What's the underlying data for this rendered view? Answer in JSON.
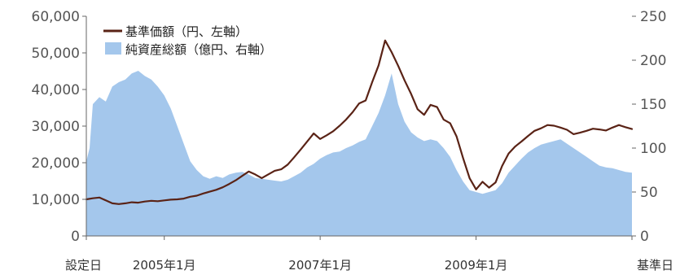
{
  "chart_data": {
    "type": "area",
    "title": "",
    "legend": {
      "placement": "top-left",
      "entries": [
        {
          "label": "基準価額（円、左軸）",
          "kind": "line",
          "color": "#5a2316"
        },
        {
          "label": "純資産総額（億円、右軸）",
          "kind": "area",
          "color": "#a4c7ec"
        }
      ]
    },
    "y_left": {
      "ticks": [
        "60,000",
        "50,000",
        "40,000",
        "30,000",
        "20,000",
        "10,000",
        "0"
      ],
      "range": [
        0,
        60000
      ]
    },
    "y_right": {
      "ticks": [
        "250",
        "200",
        "150",
        "100",
        "50",
        "0"
      ],
      "range": [
        0,
        250
      ]
    },
    "x_ticks": [
      {
        "label": "設定日",
        "x": 0
      },
      {
        "label": "2005年1月",
        "x": 12
      },
      {
        "label": "2007年1月",
        "x": 36
      },
      {
        "label": "2009年1月",
        "x": 60
      },
      {
        "label": "基準日",
        "x": 84
      }
    ],
    "x_range": [
      0,
      84
    ],
    "x_unit": "months since inception",
    "series": [
      {
        "name": "純資産総額（億円、右軸）",
        "type": "area",
        "axis": "right",
        "color": "#a4c7ec",
        "points": [
          [
            0,
            85
          ],
          [
            0.5,
            100
          ],
          [
            1,
            150
          ],
          [
            2,
            158
          ],
          [
            3,
            153
          ],
          [
            4,
            170
          ],
          [
            5,
            175
          ],
          [
            6,
            178
          ],
          [
            7,
            185
          ],
          [
            8,
            188
          ],
          [
            9,
            182
          ],
          [
            10,
            178
          ],
          [
            11,
            170
          ],
          [
            12,
            160
          ],
          [
            13,
            145
          ],
          [
            14,
            125
          ],
          [
            15,
            105
          ],
          [
            16,
            85
          ],
          [
            17,
            75
          ],
          [
            18,
            68
          ],
          [
            19,
            65
          ],
          [
            20,
            68
          ],
          [
            21,
            66
          ],
          [
            22,
            70
          ],
          [
            23,
            72
          ],
          [
            24,
            73
          ],
          [
            25,
            70
          ],
          [
            26,
            66
          ],
          [
            27,
            65
          ],
          [
            28,
            64
          ],
          [
            29,
            63
          ],
          [
            30,
            62
          ],
          [
            31,
            64
          ],
          [
            32,
            68
          ],
          [
            33,
            72
          ],
          [
            34,
            78
          ],
          [
            35,
            82
          ],
          [
            36,
            88
          ],
          [
            37,
            92
          ],
          [
            38,
            95
          ],
          [
            39,
            96
          ],
          [
            40,
            100
          ],
          [
            41,
            103
          ],
          [
            42,
            107
          ],
          [
            43,
            110
          ],
          [
            44,
            125
          ],
          [
            45,
            140
          ],
          [
            46,
            160
          ],
          [
            47,
            185
          ],
          [
            48,
            150
          ],
          [
            49,
            130
          ],
          [
            50,
            118
          ],
          [
            51,
            112
          ],
          [
            52,
            108
          ],
          [
            53,
            110
          ],
          [
            54,
            108
          ],
          [
            55,
            100
          ],
          [
            56,
            90
          ],
          [
            57,
            75
          ],
          [
            58,
            62
          ],
          [
            59,
            52
          ],
          [
            60,
            50
          ],
          [
            61,
            48
          ],
          [
            62,
            50
          ],
          [
            63,
            52
          ],
          [
            64,
            60
          ],
          [
            65,
            72
          ],
          [
            66,
            80
          ],
          [
            67,
            88
          ],
          [
            68,
            95
          ],
          [
            69,
            100
          ],
          [
            70,
            104
          ],
          [
            71,
            106
          ],
          [
            72,
            108
          ],
          [
            73,
            110
          ],
          [
            74,
            105
          ],
          [
            75,
            100
          ],
          [
            76,
            95
          ],
          [
            77,
            90
          ],
          [
            78,
            85
          ],
          [
            79,
            80
          ],
          [
            80,
            78
          ],
          [
            81,
            77
          ],
          [
            82,
            75
          ],
          [
            83,
            73
          ],
          [
            84,
            72
          ]
        ]
      },
      {
        "name": "基準価額（円、左軸）",
        "type": "line",
        "axis": "left",
        "color": "#5a2316",
        "points": [
          [
            0,
            10000
          ],
          [
            1,
            10300
          ],
          [
            2,
            10500
          ],
          [
            3,
            9700
          ],
          [
            4,
            8900
          ],
          [
            5,
            8700
          ],
          [
            6,
            8900
          ],
          [
            7,
            9200
          ],
          [
            8,
            9100
          ],
          [
            9,
            9400
          ],
          [
            10,
            9600
          ],
          [
            11,
            9500
          ],
          [
            12,
            9700
          ],
          [
            13,
            9900
          ],
          [
            14,
            10000
          ],
          [
            15,
            10200
          ],
          [
            16,
            10700
          ],
          [
            17,
            11000
          ],
          [
            18,
            11600
          ],
          [
            19,
            12100
          ],
          [
            20,
            12600
          ],
          [
            21,
            13300
          ],
          [
            22,
            14200
          ],
          [
            23,
            15200
          ],
          [
            24,
            16400
          ],
          [
            25,
            17600
          ],
          [
            26,
            16800
          ],
          [
            27,
            15800
          ],
          [
            28,
            16800
          ],
          [
            29,
            17800
          ],
          [
            30,
            18200
          ],
          [
            31,
            19500
          ],
          [
            32,
            21500
          ],
          [
            33,
            23600
          ],
          [
            34,
            25800
          ],
          [
            35,
            28000
          ],
          [
            36,
            26500
          ],
          [
            37,
            27500
          ],
          [
            38,
            28600
          ],
          [
            39,
            30100
          ],
          [
            40,
            31800
          ],
          [
            41,
            33800
          ],
          [
            42,
            36200
          ],
          [
            43,
            37000
          ],
          [
            44,
            42000
          ],
          [
            45,
            46600
          ],
          [
            46,
            53400
          ],
          [
            47,
            50200
          ],
          [
            48,
            46500
          ],
          [
            49,
            42500
          ],
          [
            50,
            38800
          ],
          [
            51,
            34600
          ],
          [
            52,
            33100
          ],
          [
            53,
            35800
          ],
          [
            54,
            35200
          ],
          [
            55,
            31800
          ],
          [
            56,
            30800
          ],
          [
            57,
            27200
          ],
          [
            58,
            21300
          ],
          [
            59,
            15800
          ],
          [
            60,
            12700
          ],
          [
            61,
            14800
          ],
          [
            62,
            13200
          ],
          [
            63,
            14600
          ],
          [
            64,
            19100
          ],
          [
            65,
            22500
          ],
          [
            66,
            24400
          ],
          [
            67,
            25800
          ],
          [
            68,
            27300
          ],
          [
            69,
            28700
          ],
          [
            70,
            29400
          ],
          [
            71,
            30300
          ],
          [
            72,
            30100
          ],
          [
            73,
            29600
          ],
          [
            74,
            29000
          ],
          [
            75,
            27800
          ],
          [
            76,
            28200
          ],
          [
            77,
            28700
          ],
          [
            78,
            29300
          ],
          [
            79,
            29100
          ],
          [
            80,
            28800
          ],
          [
            81,
            29600
          ],
          [
            82,
            30300
          ],
          [
            83,
            29700
          ],
          [
            84,
            29200
          ]
        ]
      }
    ]
  }
}
